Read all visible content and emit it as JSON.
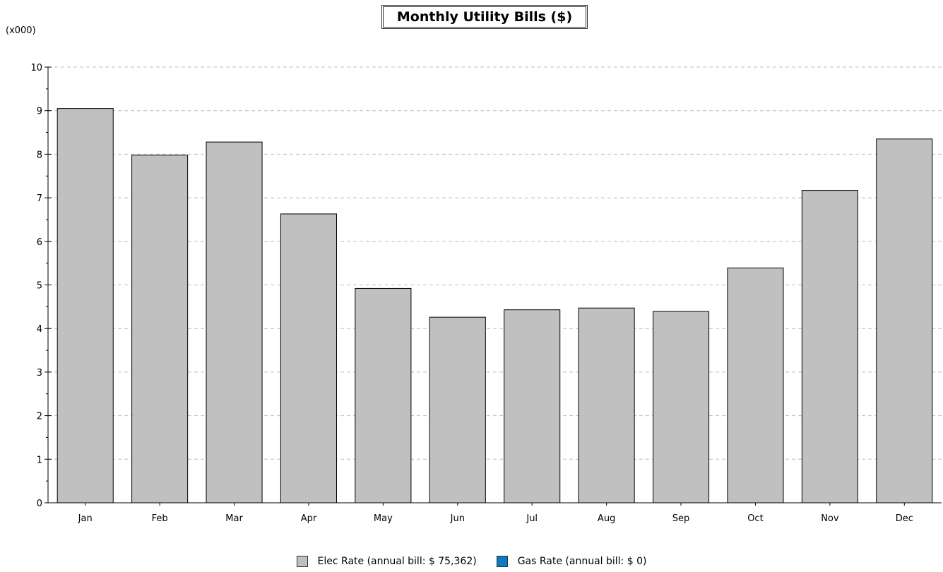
{
  "chart_data": {
    "type": "bar",
    "title": "Monthly Utility Bills ($)",
    "unit_label": "(x000)",
    "categories": [
      "Jan",
      "Feb",
      "Mar",
      "Apr",
      "May",
      "Jun",
      "Jul",
      "Aug",
      "Sep",
      "Oct",
      "Nov",
      "Dec"
    ],
    "series": [
      {
        "name": "Elec Rate (annual bill: $ 75,362)",
        "color": "#c0c0c0",
        "values": [
          9.05,
          7.98,
          8.28,
          6.63,
          4.92,
          4.26,
          4.43,
          4.47,
          4.39,
          5.39,
          7.17,
          8.35
        ]
      },
      {
        "name": "Gas Rate (annual bill: $ 0)",
        "color": "#0a7bc0",
        "values": [
          0,
          0,
          0,
          0,
          0,
          0,
          0,
          0,
          0,
          0,
          0,
          0
        ]
      }
    ],
    "ylim": [
      0,
      10
    ],
    "yticks": [
      "0",
      "1",
      "2",
      "3",
      "4",
      "5",
      "6",
      "7",
      "8",
      "9",
      "10"
    ],
    "grid": true,
    "legend_position": "bottom-center"
  }
}
